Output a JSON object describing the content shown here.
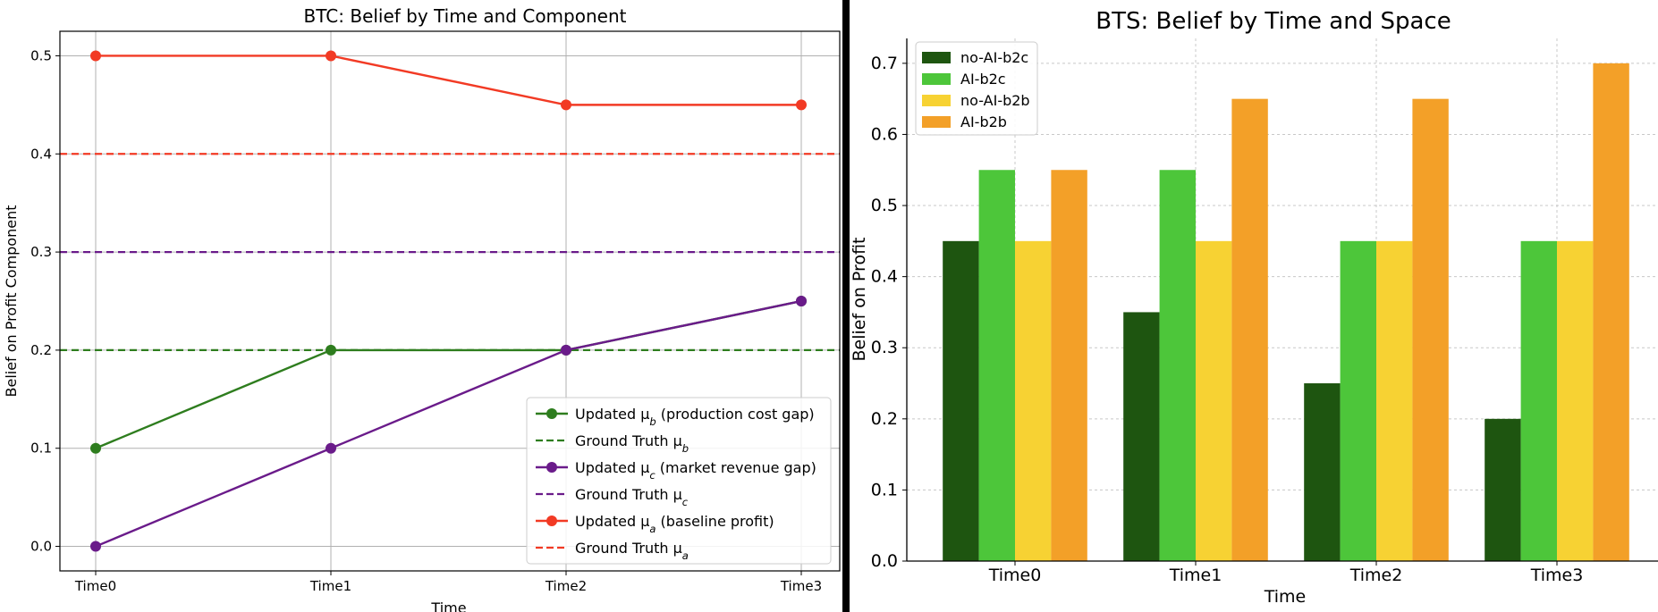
{
  "chart_data": [
    {
      "type": "line",
      "title": "BTC: Belief by Time and Component",
      "xlabel": "Time",
      "ylabel": "Belief on Profit Component",
      "categories": [
        "Time0",
        "Time1",
        "Time2",
        "Time3"
      ],
      "ylim": [
        -0.025,
        0.525
      ],
      "yticks": [
        "0.0",
        "0.1",
        "0.2",
        "0.3",
        "0.4",
        "0.5"
      ],
      "grid": true,
      "legend_position": "lower-right",
      "series": [
        {
          "name": "Updated μb (production cost gap)",
          "values": [
            0.1,
            0.2,
            0.2,
            0.25
          ],
          "color": "#2e7d1e"
        },
        {
          "name": "Updated μc (market revenue gap)",
          "values": [
            0.0,
            0.1,
            0.2,
            0.25
          ],
          "color": "#6a1b8a"
        },
        {
          "name": "Updated μa (baseline profit)",
          "values": [
            0.5,
            0.5,
            0.45,
            0.45
          ],
          "color": "#f23a24"
        }
      ],
      "reference_lines": [
        {
          "name": "Ground Truth μb",
          "value": 0.2,
          "color": "#2e7d1e"
        },
        {
          "name": "Ground Truth μc",
          "value": 0.3,
          "color": "#6a1b8a"
        },
        {
          "name": "Ground Truth μa",
          "value": 0.4,
          "color": "#f23a24"
        }
      ],
      "legend": [
        {
          "label": "Updated μb (production cost gap)",
          "color": "#2e7d1e",
          "style": "marker-line"
        },
        {
          "label": "Ground Truth μb",
          "color": "#2e7d1e",
          "style": "dashed"
        },
        {
          "label": "Updated μc (market revenue gap)",
          "color": "#6a1b8a",
          "style": "marker-line"
        },
        {
          "label": "Ground Truth μc",
          "color": "#6a1b8a",
          "style": "dashed"
        },
        {
          "label": "Updated μa (baseline profit)",
          "color": "#f23a24",
          "style": "marker-line"
        },
        {
          "label": "Ground Truth μa",
          "color": "#f23a24",
          "style": "dashed"
        }
      ]
    },
    {
      "type": "bar",
      "title": "BTS: Belief by Time and Space",
      "xlabel": "Time",
      "ylabel": "Belief on Profit",
      "categories": [
        "Time0",
        "Time1",
        "Time2",
        "Time3"
      ],
      "ylim": [
        0,
        0.735
      ],
      "yticks": [
        "0.0",
        "0.1",
        "0.2",
        "0.3",
        "0.4",
        "0.5",
        "0.6",
        "0.7"
      ],
      "grid": true,
      "legend_position": "top-left",
      "series": [
        {
          "name": "no-AI-b2c",
          "values": [
            0.45,
            0.35,
            0.25,
            0.2
          ],
          "color": "#1e5510"
        },
        {
          "name": "AI-b2c",
          "values": [
            0.55,
            0.55,
            0.45,
            0.45
          ],
          "color": "#4dc63a"
        },
        {
          "name": "no-AI-b2b",
          "values": [
            0.45,
            0.45,
            0.45,
            0.45
          ],
          "color": "#f7d233"
        },
        {
          "name": "AI-b2b",
          "values": [
            0.55,
            0.65,
            0.65,
            0.7
          ],
          "color": "#f3a028"
        }
      ]
    }
  ]
}
